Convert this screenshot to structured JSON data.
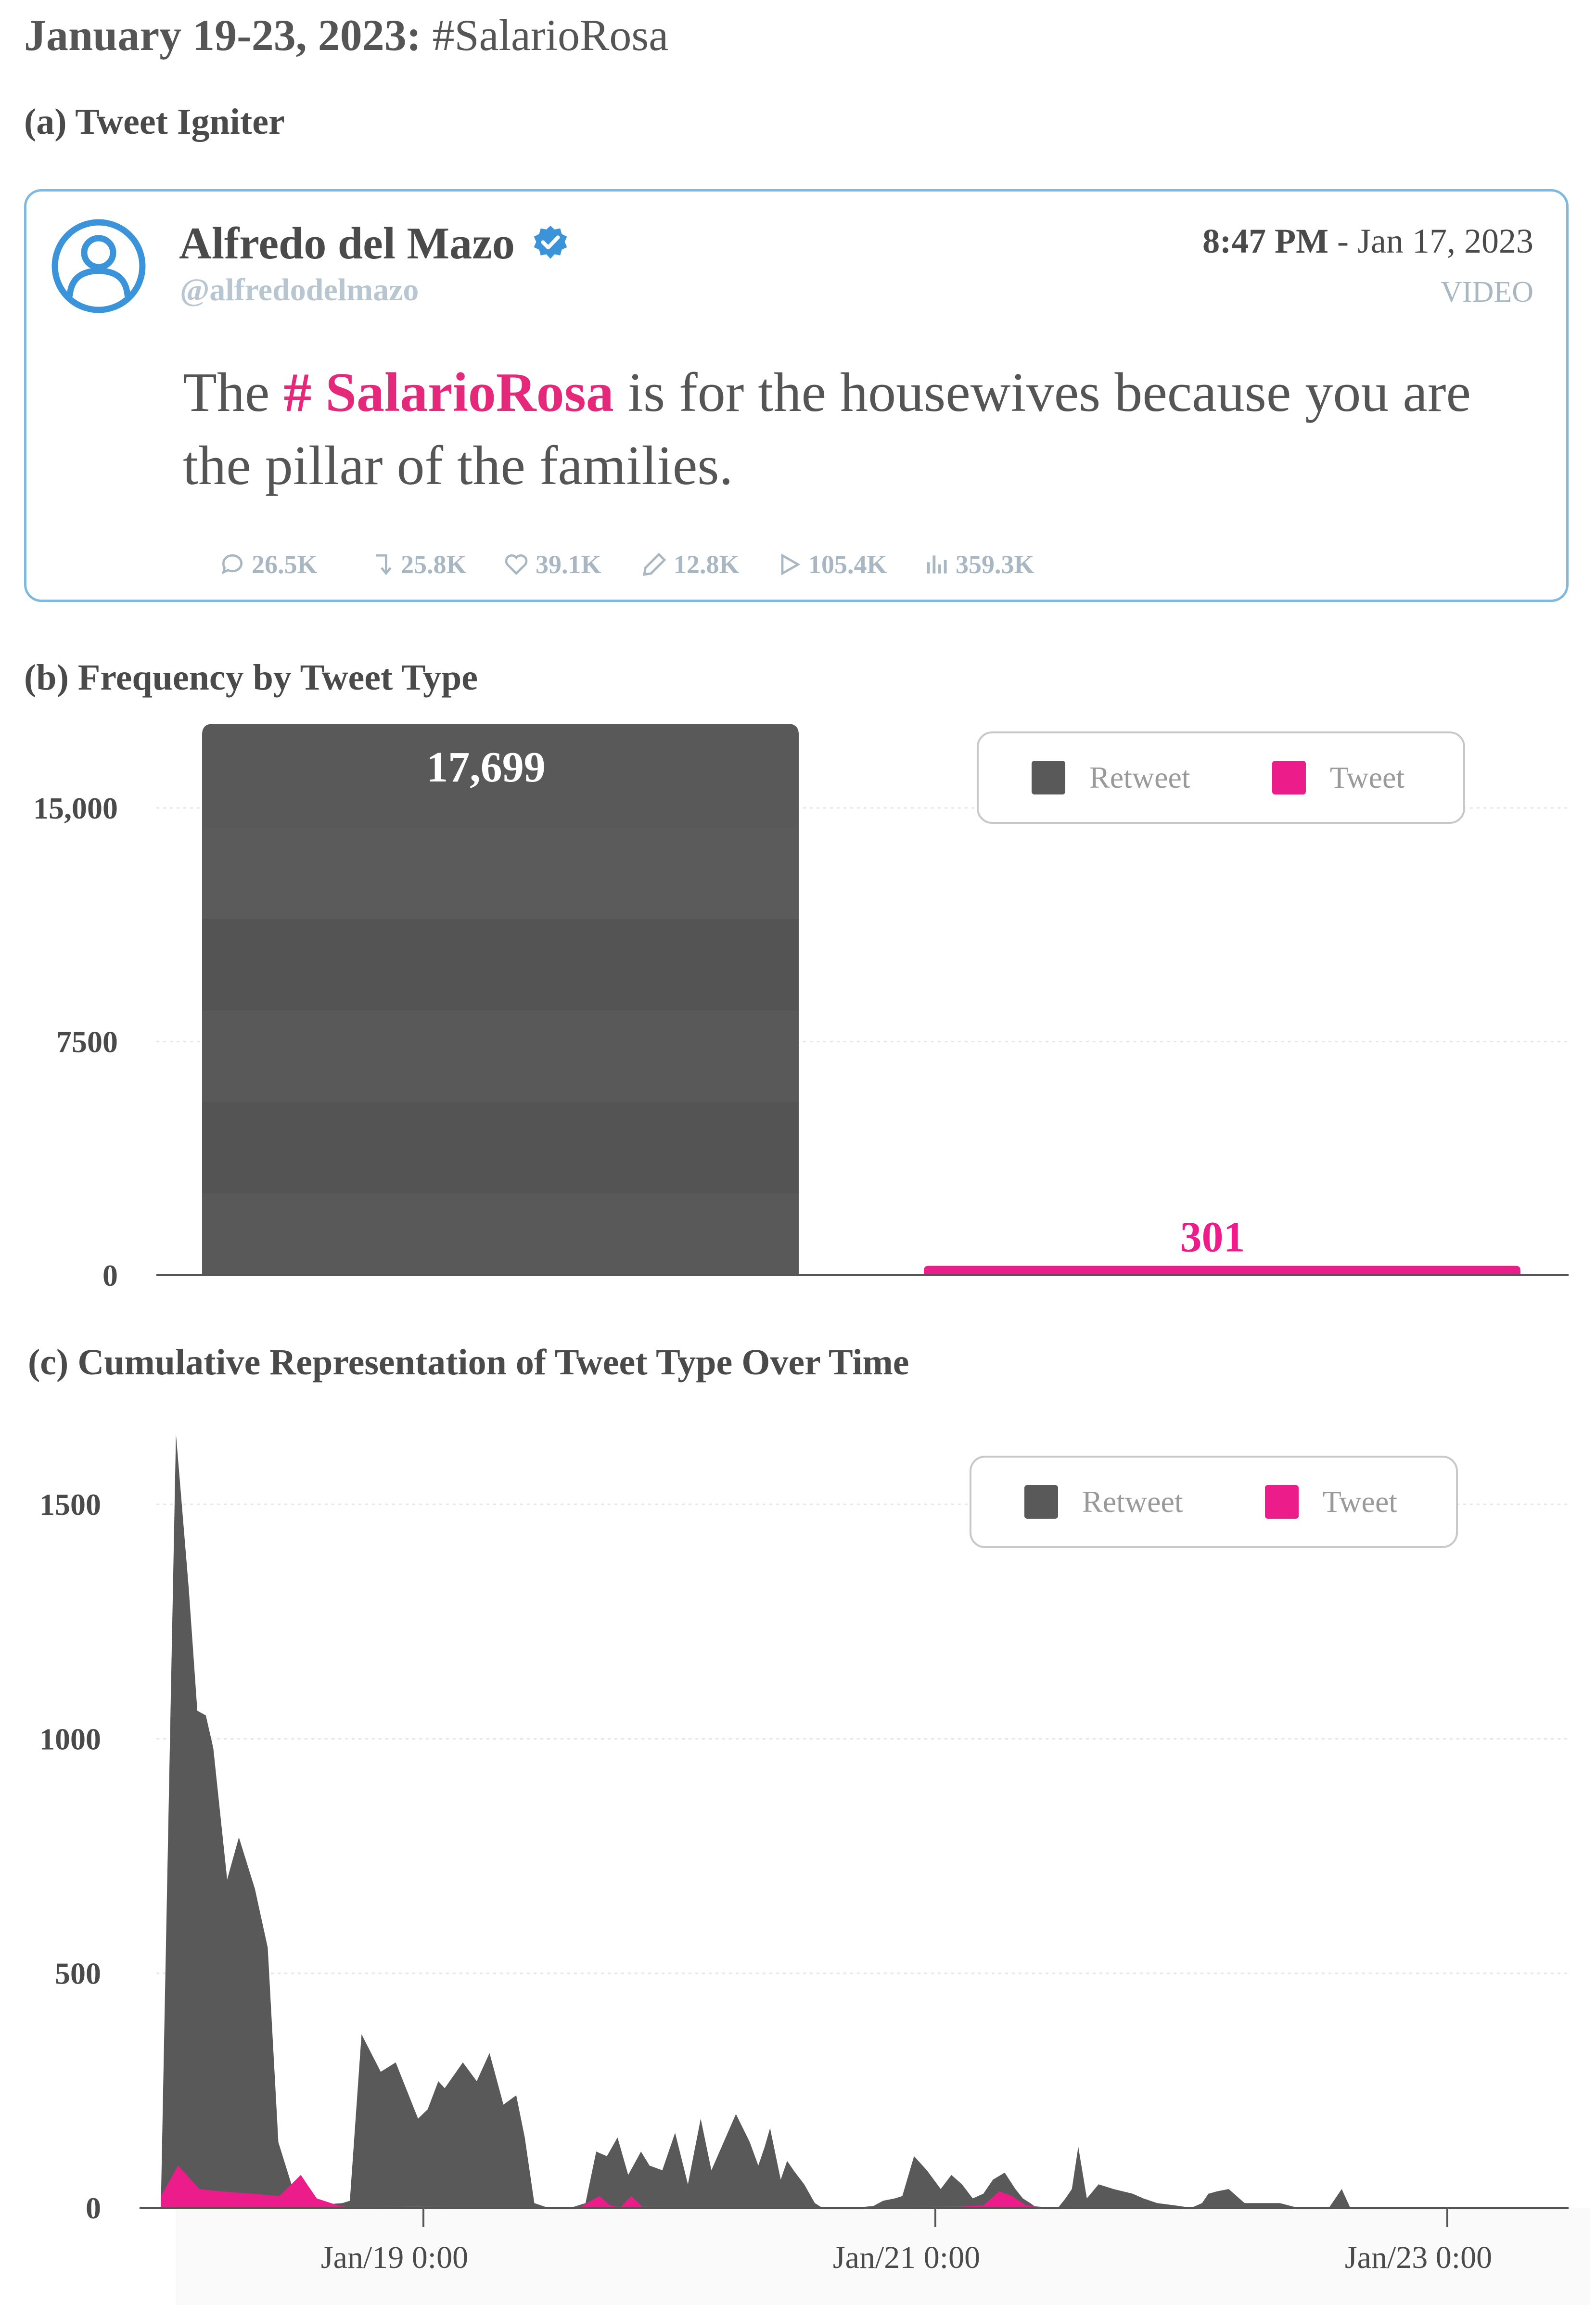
{
  "header": {
    "date_range": "January 19-23, 2023:",
    "hashtag": "#SalarioRosa"
  },
  "sections": {
    "a": "(a) Tweet Igniter",
    "b": "(b) Frequency by Tweet Type",
    "c": "(c) Cumulative Representation of Tweet Type Over Time"
  },
  "tweet": {
    "author_name": "Alfredo del Mazo",
    "handle": "@alfredodelmazo",
    "time": "8:47 PM",
    "date": "- Jan 17, 2023",
    "media_label": "VIDEO",
    "text_before": "The",
    "text_hashtag": "# SalarioRosa",
    "text_after": "is for the housewives because you are the pillar of the families.",
    "stats": {
      "replies": "26.5K",
      "retweets": "25.8K",
      "likes": "39.1K",
      "quotes": "12.8K",
      "video_views": "105.4K",
      "impressions": "359.3K"
    },
    "icons": {
      "avatar": "user-circle-icon",
      "verified": "verified-badge-icon",
      "replies": "comment-icon",
      "retweets": "retweet-icon",
      "likes": "heart-icon",
      "quotes": "quote-icon",
      "video_views": "play-icon",
      "impressions": "bar-chart-icon"
    }
  },
  "colors": {
    "retweet": "#595959",
    "tweet": "#ec1d8b",
    "card_border": "#7fb9df",
    "verified": "#3b94d9"
  },
  "chart_data": [
    {
      "type": "bar",
      "categories": [
        "Retweet",
        "Tweet"
      ],
      "values": [
        17699,
        301
      ],
      "value_labels": [
        "17,699",
        "301"
      ],
      "legend": [
        "Retweet",
        "Tweet"
      ],
      "legend_position": "top-right",
      "yticks": [
        "15,000",
        "7500",
        "0"
      ],
      "ytick_values": [
        15000,
        7500,
        0
      ],
      "ylim": [
        0,
        19000
      ],
      "grid": true
    },
    {
      "type": "area",
      "legend": [
        "Retweet",
        "Tweet"
      ],
      "legend_position": "top-right",
      "yticks": [
        "1500",
        "1000",
        "500",
        "0"
      ],
      "ytick_values": [
        1500,
        1000,
        500,
        0
      ],
      "ylim": [
        0,
        1650
      ],
      "xticks": [
        "Jan/19 0:00",
        "Jan/21 0:00",
        "Jan/23 0:00"
      ],
      "xtick_hours": [
        24,
        72,
        120
      ],
      "xlim_hours": [
        -6,
        138
      ],
      "grid": true,
      "series": [
        {
          "name": "Retweet",
          "x_hours": [
            -0.6,
            0.8,
            2.0,
            2.8,
            3.6,
            4.3,
            5.6,
            6.7,
            8.2,
            9.4,
            10.4,
            11.9,
            13.4,
            15.2,
            16.4,
            17.1,
            18.2,
            20.0,
            21.4,
            23.5,
            24.4,
            25.4,
            26.0,
            27.7,
            29.0,
            30.2,
            31.5,
            32.7,
            33.5,
            34.4,
            35.7,
            36.6,
            37.8,
            39.2,
            40.2,
            41.2,
            42.2,
            43.2,
            44.4,
            45.2,
            46.4,
            47.6,
            48.8,
            50.0,
            51.0,
            53.3,
            54.6,
            55.4,
            56.0,
            56.5,
            57.5,
            58.1,
            58.7,
            59.7,
            60.7,
            61.4,
            62.3,
            63.2,
            64.3,
            65.3,
            66.2,
            67.1,
            68.2,
            68.9,
            70.0,
            71.2,
            72.5,
            73.5,
            74.5,
            75.5,
            76.5,
            77.4,
            78.5,
            79.5,
            80.2,
            80.9,
            81.5,
            82.2,
            83.0,
            83.5,
            84.2,
            84.8,
            85.4,
            86.2,
            87.3,
            88.7,
            90.5,
            91.5,
            92.8,
            94.5,
            96.0,
            97.0,
            97.6,
            98.4,
            99.5,
            101.0,
            104.3,
            106.0,
            107.4,
            108.3,
            108.9,
            109.5,
            110.1,
            110.9,
            113.5,
            120.0,
            126.0,
            133.0,
            136.5
          ],
          "values": [
            25,
            1650,
            1320,
            1060,
            1050,
            980,
            700,
            790,
            680,
            555,
            140,
            30,
            5,
            8,
            10,
            15,
            370,
            290,
            310,
            190,
            210,
            270,
            255,
            310,
            270,
            330,
            220,
            240,
            150,
            10,
            0,
            0,
            0,
            10,
            120,
            110,
            150,
            70,
            120,
            90,
            80,
            160,
            50,
            190,
            80,
            200,
            140,
            90,
            130,
            170,
            60,
            100,
            80,
            50,
            10,
            0,
            0,
            0,
            0,
            2,
            4,
            15,
            20,
            25,
            110,
            80,
            40,
            70,
            50,
            20,
            30,
            60,
            75,
            40,
            20,
            10,
            0,
            0,
            0,
            0,
            20,
            40,
            130,
            20,
            50,
            40,
            30,
            20,
            10,
            5,
            0,
            10,
            30,
            35,
            40,
            10,
            10,
            0,
            0,
            0,
            0,
            20,
            40,
            0,
            0,
            0,
            0,
            0,
            0
          ]
        },
        {
          "name": "Tweet",
          "x_hours": [
            -0.6,
            1.0,
            3.0,
            5.0,
            8.0,
            10.5,
            12.5,
            14.0,
            16.0,
            17.5,
            19.0,
            23.0,
            26.5,
            36.0,
            38.0,
            38.8,
            40.5,
            41.5,
            42.5,
            43.5,
            44.5,
            47.0,
            60.0,
            74.0,
            76.5,
            78.0,
            79.2,
            80.5,
            82.0,
            83.5,
            90.0,
            100.0,
            110.0,
            120.0,
            136.5
          ],
          "values": [
            25,
            90,
            40,
            35,
            30,
            25,
            70,
            20,
            5,
            0,
            2,
            3,
            2,
            0,
            2,
            3,
            25,
            5,
            2,
            25,
            3,
            2,
            0,
            3,
            5,
            35,
            25,
            5,
            2,
            0,
            0,
            0,
            0,
            0,
            0
          ]
        }
      ]
    }
  ]
}
